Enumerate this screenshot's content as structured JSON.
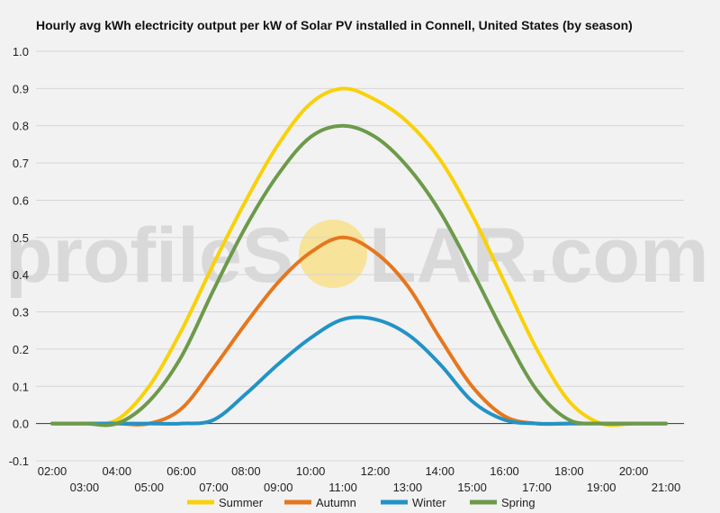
{
  "chart_data": {
    "type": "line",
    "title": "Hourly avg kWh electricity output per kW of Solar PV installed in Connell, United States (by season)",
    "xlabel": "",
    "ylabel": "",
    "ylim": [
      -0.1,
      1.0
    ],
    "yticks": [
      "-0.1",
      "0.0",
      "0.1",
      "0.2",
      "0.3",
      "0.4",
      "0.5",
      "0.6",
      "0.7",
      "0.8",
      "0.9",
      "1.0"
    ],
    "x": [
      "02:00",
      "03:00",
      "04:00",
      "05:00",
      "06:00",
      "07:00",
      "08:00",
      "09:00",
      "10:00",
      "11:00",
      "12:00",
      "13:00",
      "14:00",
      "15:00",
      "16:00",
      "17:00",
      "18:00",
      "19:00",
      "20:00",
      "21:00"
    ],
    "grid": true,
    "legend_position": "bottom",
    "series": [
      {
        "name": "Summer",
        "color": "#f9d10a",
        "values": [
          0,
          0,
          0.01,
          0.1,
          0.25,
          0.43,
          0.6,
          0.75,
          0.86,
          0.9,
          0.87,
          0.81,
          0.71,
          0.56,
          0.38,
          0.2,
          0.06,
          0.0,
          0,
          0
        ]
      },
      {
        "name": "Autumn",
        "color": "#e5771e",
        "values": [
          0,
          0,
          0,
          0,
          0.04,
          0.15,
          0.27,
          0.38,
          0.46,
          0.5,
          0.46,
          0.37,
          0.23,
          0.1,
          0.02,
          0,
          0,
          0,
          0,
          0
        ]
      },
      {
        "name": "Winter",
        "color": "#2293c6",
        "values": [
          0,
          0,
          0,
          0,
          0,
          0.01,
          0.08,
          0.16,
          0.23,
          0.28,
          0.28,
          0.24,
          0.16,
          0.06,
          0.01,
          0,
          0,
          0,
          0,
          0
        ]
      },
      {
        "name": "Spring",
        "color": "#6c9a4a",
        "values": [
          0,
          0,
          0,
          0.06,
          0.18,
          0.36,
          0.53,
          0.67,
          0.77,
          0.8,
          0.77,
          0.69,
          0.57,
          0.41,
          0.24,
          0.09,
          0.01,
          0,
          0,
          0
        ]
      }
    ]
  },
  "watermark": {
    "left_text": "profileS",
    "right_text": "LAR.com",
    "sun_color": "#f7e39a"
  }
}
